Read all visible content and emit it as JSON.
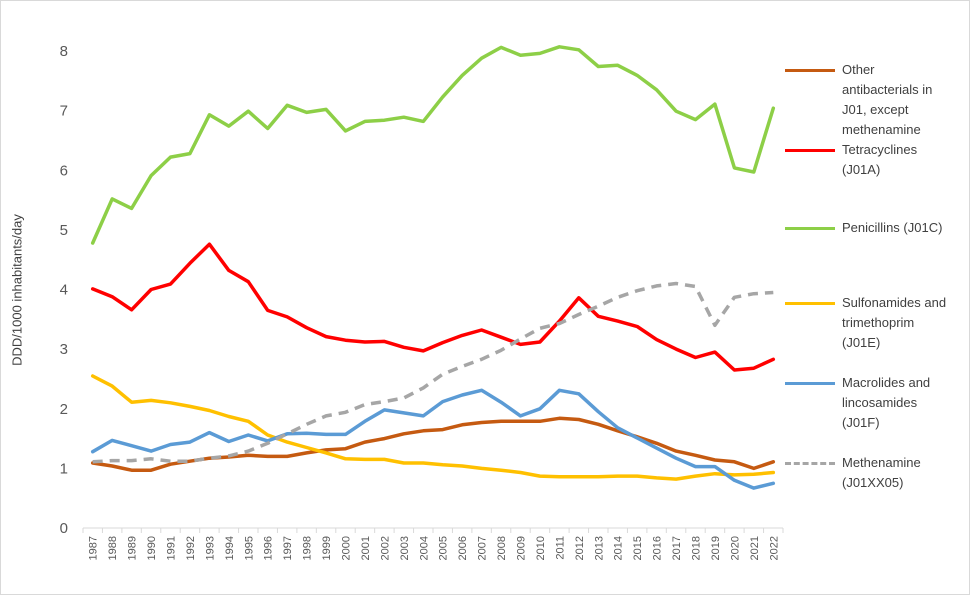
{
  "chart_data": {
    "type": "line",
    "ylabel": "DDD/1000 inhabitants/day",
    "xlabel": "",
    "title": "",
    "ylim": [
      0,
      8
    ],
    "yticks": [
      0,
      1,
      2,
      3,
      4,
      5,
      6,
      7,
      8
    ],
    "grid": false,
    "legend_position": "right",
    "x": [
      "1987",
      "1988",
      "1989",
      "1990",
      "1991",
      "1992",
      "1993",
      "1994",
      "1995",
      "1996",
      "1997",
      "1998",
      "1999",
      "2000",
      "2001",
      "2002",
      "2003",
      "2004",
      "2005",
      "2006",
      "2007",
      "2008",
      "2009",
      "2010",
      "2011",
      "2012",
      "2013",
      "2014",
      "2015",
      "2016",
      "2017",
      "2018",
      "2019",
      "2020",
      "2021",
      "2022"
    ],
    "series": [
      {
        "name": "Other antibacterials in J01, except methenamine",
        "color": "#c55a11",
        "dash": "solid",
        "values": [
          1.09,
          1.04,
          0.97,
          0.97,
          1.07,
          1.12,
          1.17,
          1.19,
          1.22,
          1.2,
          1.2,
          1.26,
          1.31,
          1.33,
          1.44,
          1.5,
          1.58,
          1.63,
          1.65,
          1.73,
          1.77,
          1.79,
          1.79,
          1.79,
          1.84,
          1.82,
          1.74,
          1.63,
          1.53,
          1.42,
          1.29,
          1.22,
          1.14,
          1.11,
          1.0,
          1.11
        ]
      },
      {
        "name": "Tetracyclines (J01A)",
        "color": "#ff0000",
        "dash": "solid",
        "values": [
          4.01,
          3.88,
          3.66,
          4.0,
          4.09,
          4.44,
          4.76,
          4.32,
          4.13,
          3.65,
          3.54,
          3.36,
          3.21,
          3.15,
          3.12,
          3.13,
          3.03,
          2.97,
          3.11,
          3.23,
          3.32,
          3.2,
          3.08,
          3.12,
          3.47,
          3.86,
          3.55,
          3.47,
          3.38,
          3.16,
          3.0,
          2.86,
          2.95,
          2.65,
          2.68,
          2.83
        ]
      },
      {
        "name": "Penicillins (J01C)",
        "color": "#8dcf47",
        "dash": "solid",
        "values": [
          4.78,
          5.52,
          5.36,
          5.91,
          6.22,
          6.28,
          6.93,
          6.74,
          6.99,
          6.7,
          7.09,
          6.97,
          7.02,
          6.66,
          6.82,
          6.84,
          6.89,
          6.82,
          7.23,
          7.59,
          7.88,
          8.06,
          7.93,
          7.96,
          8.07,
          8.02,
          7.74,
          7.76,
          7.59,
          7.35,
          6.99,
          6.85,
          7.11,
          6.04,
          5.97,
          7.04
        ]
      },
      {
        "name": "Sulfonamides and trimethoprim (J01E)",
        "color": "#ffc000",
        "dash": "solid",
        "values": [
          2.55,
          2.38,
          2.11,
          2.14,
          2.1,
          2.04,
          1.97,
          1.87,
          1.79,
          1.56,
          1.44,
          1.35,
          1.26,
          1.16,
          1.15,
          1.15,
          1.09,
          1.09,
          1.06,
          1.04,
          1.0,
          0.97,
          0.93,
          0.87,
          0.86,
          0.86,
          0.86,
          0.87,
          0.87,
          0.84,
          0.82,
          0.87,
          0.91,
          0.89,
          0.9,
          0.93
        ]
      },
      {
        "name": "Macrolides and lincosamides (J01F)",
        "color": "#5b9bd5",
        "dash": "solid",
        "values": [
          1.28,
          1.47,
          1.38,
          1.29,
          1.4,
          1.44,
          1.6,
          1.45,
          1.56,
          1.46,
          1.58,
          1.59,
          1.57,
          1.57,
          1.79,
          1.98,
          1.93,
          1.88,
          2.12,
          2.23,
          2.31,
          2.11,
          1.88,
          2.0,
          2.31,
          2.25,
          1.95,
          1.68,
          1.51,
          1.34,
          1.17,
          1.03,
          1.03,
          0.8,
          0.67,
          0.75
        ]
      },
      {
        "name": "Methenamine (J01XX05)",
        "color": "#a6a6a6",
        "dash": "dashed",
        "values": [
          1.11,
          1.13,
          1.13,
          1.16,
          1.12,
          1.12,
          1.17,
          1.21,
          1.29,
          1.42,
          1.58,
          1.74,
          1.88,
          1.94,
          2.07,
          2.12,
          2.18,
          2.35,
          2.58,
          2.71,
          2.83,
          2.98,
          3.17,
          3.35,
          3.43,
          3.58,
          3.72,
          3.87,
          3.98,
          4.06,
          4.1,
          4.05,
          3.4,
          3.87,
          3.93,
          3.95
        ]
      }
    ],
    "legend_labels": [
      "Other\nantibacterials in\nJ01, except\nmethenamine",
      "Tetracyclines\n(J01A)",
      "Penicillins (J01C)",
      "Sulfonamides and\ntrimethoprim\n(J01E)",
      "Macrolides and\nlincosamides\n(J01F)",
      "Methenamine\n(J01XX05)"
    ]
  }
}
